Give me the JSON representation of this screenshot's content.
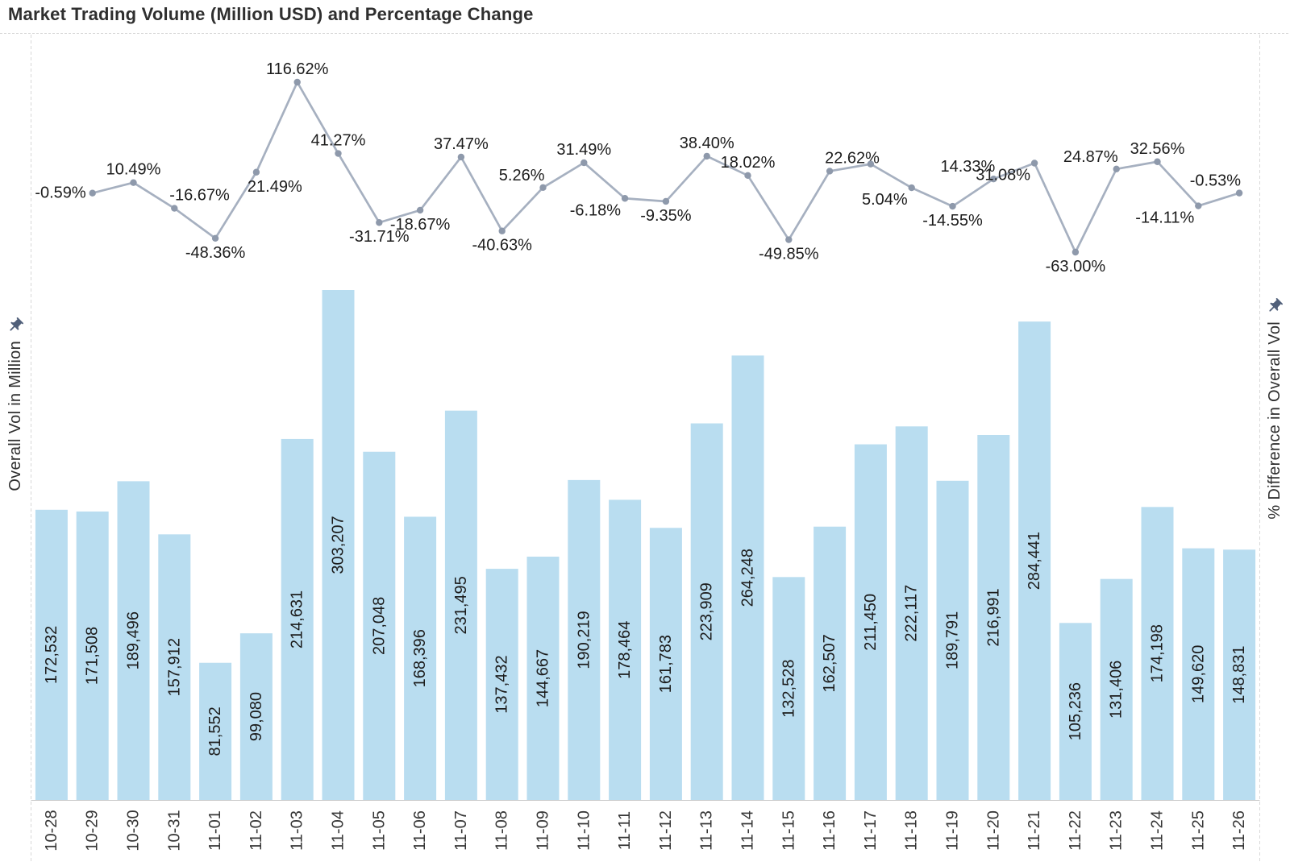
{
  "title": "Market Trading Volume (Million USD) and Percentage Change",
  "axes": {
    "left_title": "Overall Vol in Million",
    "right_title": "% Difference in Overall Vol"
  },
  "colors": {
    "bar": "#b9ddf0",
    "line": "#a6b0c0",
    "marker": "#8e99ab",
    "label": "#1c1c1c",
    "tick_label": "#363636",
    "border": "#d8d8d8",
    "axis_line": "#c8c8c8",
    "title": "#2f2f2f",
    "pin": "#51607a"
  },
  "chart_data": {
    "type": "combo",
    "title": "Market Trading Volume (Million USD) and Percentage Change",
    "categories": [
      "10-28",
      "10-29",
      "10-30",
      "10-31",
      "11-01",
      "11-02",
      "11-03",
      "11-04",
      "11-05",
      "11-06",
      "11-07",
      "11-08",
      "11-09",
      "11-10",
      "11-11",
      "11-12",
      "11-13",
      "11-14",
      "11-15",
      "11-16",
      "11-17",
      "11-18",
      "11-19",
      "11-20",
      "11-21",
      "11-22",
      "11-23",
      "11-24",
      "11-25",
      "11-26"
    ],
    "grid": false,
    "legend": false,
    "left_axis_range": [
      0,
      320000
    ],
    "right_axis_range_visible": [
      -63,
      117
    ],
    "series": [
      {
        "name": "Overall Vol in Million",
        "type": "bar",
        "axis": "left",
        "values": [
          172532,
          171508,
          189496,
          157912,
          81552,
          99080,
          214631,
          303207,
          207048,
          168396,
          231495,
          137432,
          144667,
          190219,
          178464,
          161783,
          223909,
          264248,
          132528,
          162507,
          211450,
          222117,
          189791,
          216991,
          284441,
          105236,
          131406,
          174198,
          149620,
          148831
        ],
        "labels": [
          "172,532",
          "171,508",
          "189,496",
          "157,912",
          "81,552",
          "99,080",
          "214,631",
          "303,207",
          "207,048",
          "168,396",
          "231,495",
          "137,432",
          "144,667",
          "190,219",
          "178,464",
          "161,783",
          "223,909",
          "264,248",
          "132,528",
          "162,507",
          "211,450",
          "222,117",
          "189,791",
          "216,991",
          "284,441",
          "105,236",
          "131,406",
          "174,198",
          "149,620",
          "148,831"
        ]
      },
      {
        "name": "% Difference in Overall Vol",
        "type": "line",
        "axis": "right",
        "x_categories": [
          "10-29",
          "10-30",
          "10-31",
          "11-01",
          "11-02",
          "11-03",
          "11-04",
          "11-05",
          "11-06",
          "11-07",
          "11-08",
          "11-09",
          "11-10",
          "11-11",
          "11-12",
          "11-13",
          "11-14",
          "11-15",
          "11-16",
          "11-17",
          "11-18",
          "11-19",
          "11-20",
          "11-21",
          "11-22",
          "11-23",
          "11-24",
          "11-25",
          "11-26"
        ],
        "values": [
          -0.59,
          10.49,
          -16.67,
          -48.36,
          21.49,
          116.62,
          41.27,
          -31.71,
          -18.67,
          37.47,
          -40.63,
          5.26,
          31.49,
          -6.18,
          -9.35,
          38.4,
          18.02,
          -49.85,
          22.62,
          30.12,
          5.04,
          -14.55,
          14.33,
          31.08,
          -63.0,
          24.87,
          32.56,
          -14.11,
          -0.53
        ],
        "labels": [
          "-0.59%",
          "10.49%",
          "-16.67%",
          "-48.36%",
          "21.49%",
          "116.62%",
          "41.27%",
          "-31.71%",
          "-18.67%",
          "37.47%",
          "-40.63%",
          "5.26%",
          "31.49%",
          "-6.18%",
          "-9.35%",
          "38.40%",
          "18.02%",
          "-49.85%",
          "22.62%",
          "",
          "5.04%",
          "-14.55%",
          "14.33%",
          "31.08%",
          "-63.00%",
          "24.87%",
          "32.56%",
          "-14.11%",
          "-0.53%"
        ],
        "label_positions": [
          "left",
          "above",
          "above-right",
          "below",
          "below-right",
          "above",
          "above",
          "below",
          "below",
          "above",
          "below",
          "above-left",
          "above",
          "below-left",
          "below",
          "above",
          "above",
          "below",
          "above-right",
          "hidden",
          "below-left",
          "below",
          "above-left",
          "below-left",
          "below",
          "above-left",
          "above",
          "below-left",
          "above-left"
        ]
      }
    ]
  }
}
